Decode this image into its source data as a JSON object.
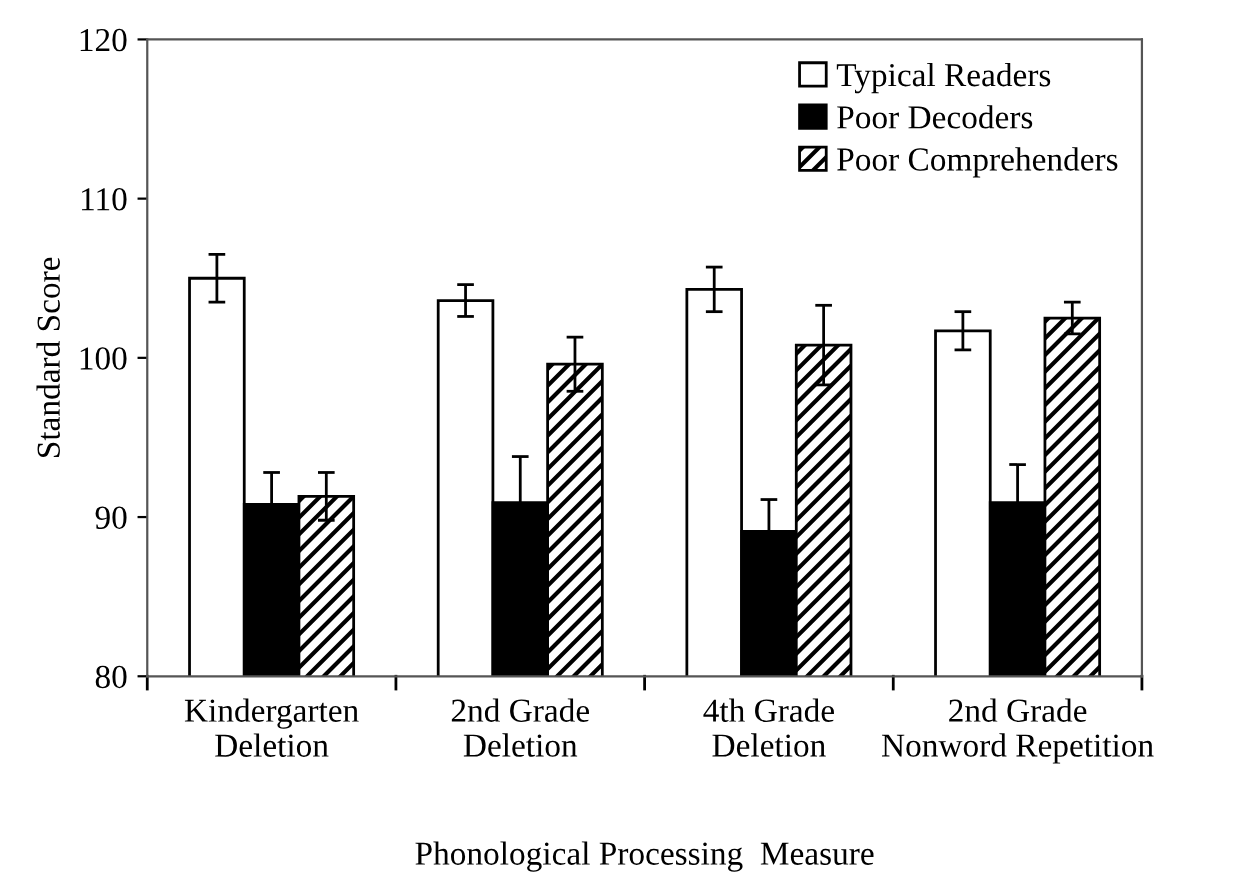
{
  "chart_data": {
    "type": "bar",
    "xlabel": "Phonological Processing  Measure",
    "ylabel": "Standard Score",
    "categories": [
      "Kindergarten\nDeletion",
      "2nd Grade\nDeletion",
      "4th Grade\nDeletion",
      "2nd Grade\nNonword Repetition"
    ],
    "series": [
      {
        "name": "Typical Readers",
        "color": "#ffffff",
        "values": [
          105.0,
          103.6,
          104.3,
          101.7
        ],
        "errors": [
          1.5,
          1.0,
          1.4,
          1.2
        ]
      },
      {
        "name": "Poor Decoders",
        "color": "#000000",
        "values": [
          90.8,
          90.9,
          89.1,
          90.9
        ],
        "errors": [
          2.0,
          2.9,
          2.0,
          2.4
        ]
      },
      {
        "name": "Poor Comprehenders",
        "color": "#000000",
        "values": [
          91.3,
          99.6,
          100.8,
          102.5
        ],
        "errors": [
          1.5,
          1.7,
          2.5,
          1.0
        ]
      }
    ],
    "ylim": [
      80,
      120
    ],
    "yticks": [
      80,
      90,
      100,
      110,
      120
    ],
    "grid": false,
    "legend": "top right"
  }
}
